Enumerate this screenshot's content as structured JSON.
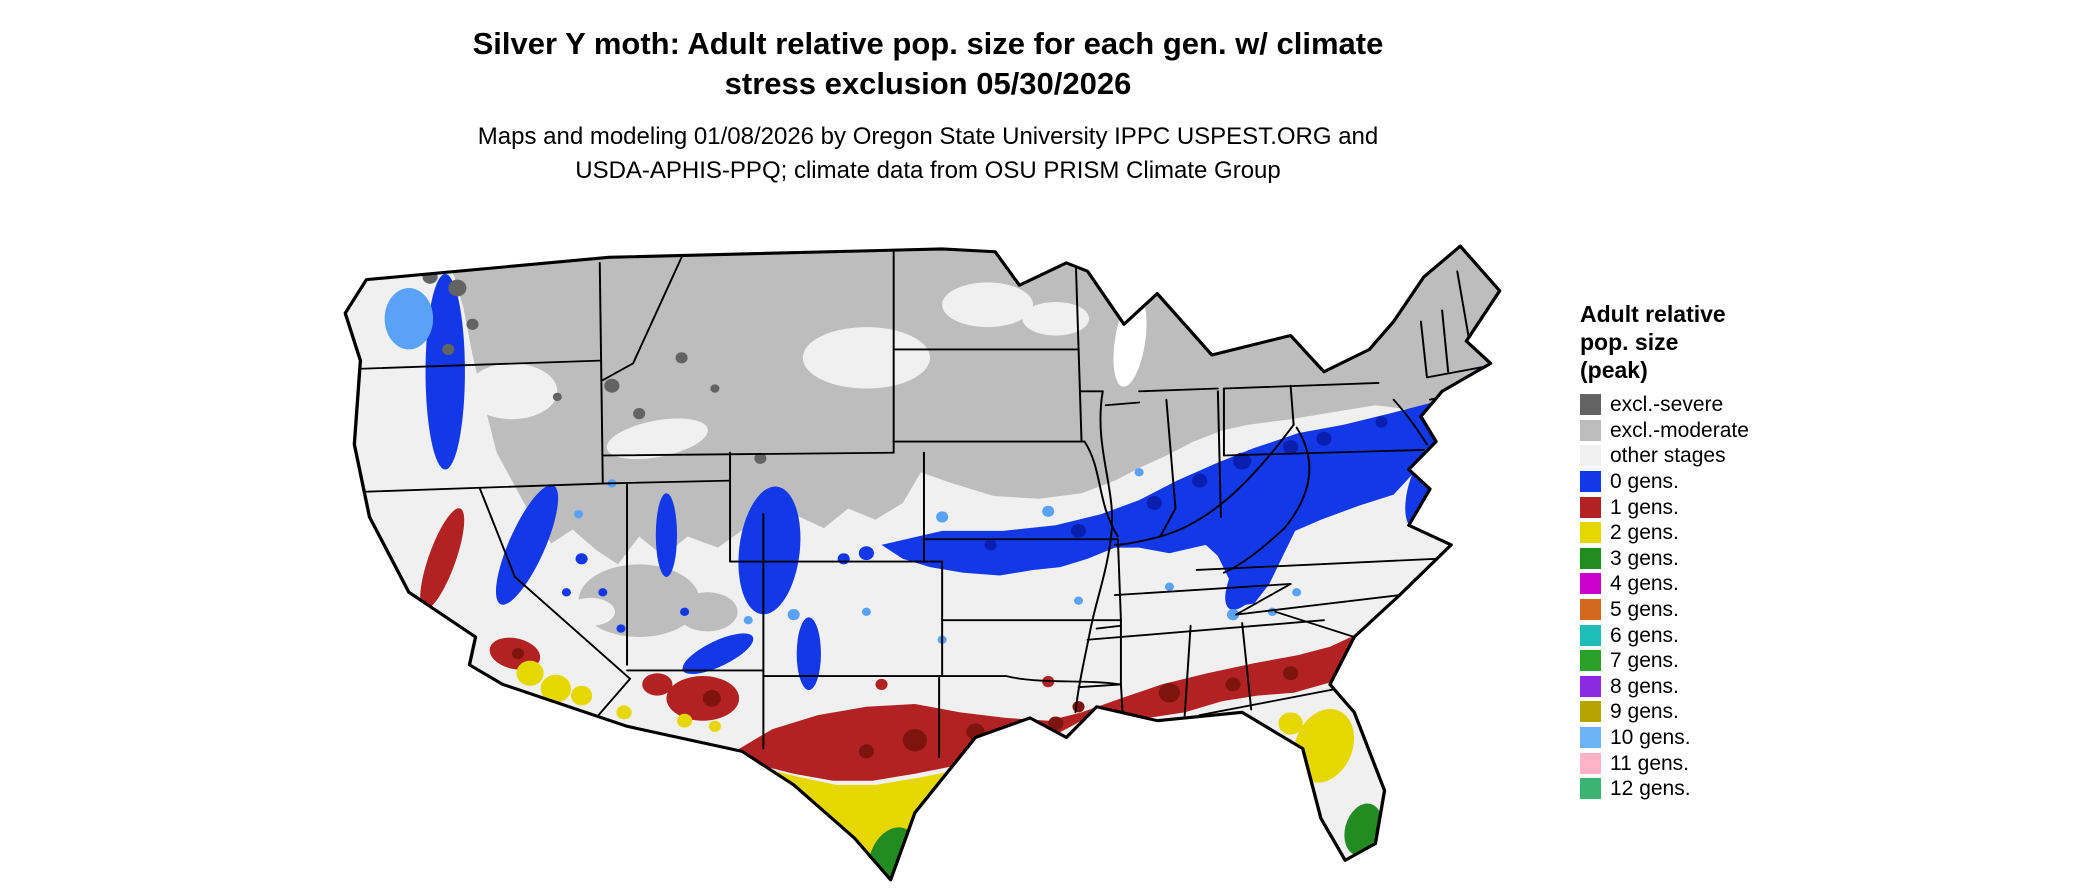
{
  "title": {
    "line1": "Silver Y moth: Adult relative pop. size for each gen. w/ climate",
    "line2": "stress exclusion 05/30/2026"
  },
  "subtitle": {
    "line1": "Maps and modeling 01/08/2026 by Oregon State University IPPC USPEST.ORG and",
    "line2": "USDA-APHIS-PPQ; climate data from OSU PRISM Climate Group"
  },
  "legend": {
    "title_lines": [
      "Adult relative",
      "pop. size",
      "(peak)"
    ],
    "items": [
      {
        "label": "excl.-severe",
        "color": "#636363"
      },
      {
        "label": "excl.-moderate",
        "color": "#bdbdbd"
      },
      {
        "label": "other stages",
        "color": "#f0f0f0"
      },
      {
        "label": "0 gens.",
        "color": "#1238e8"
      },
      {
        "label": "1 gens.",
        "color": "#b22222"
      },
      {
        "label": "2 gens.",
        "color": "#e7d700"
      },
      {
        "label": "3 gens.",
        "color": "#228b22"
      },
      {
        "label": "4 gens.",
        "color": "#cc00cc"
      },
      {
        "label": "5 gens.",
        "color": "#d2691e"
      },
      {
        "label": "6 gens.",
        "color": "#1fbdb8"
      },
      {
        "label": "7 gens.",
        "color": "#2aa02a"
      },
      {
        "label": "8 gens.",
        "color": "#8a2be2"
      },
      {
        "label": "9 gens.",
        "color": "#b5a300"
      },
      {
        "label": "10 gens.",
        "color": "#6cb2f5"
      },
      {
        "label": "11 gens.",
        "color": "#ffb3c6"
      },
      {
        "label": "12 gens.",
        "color": "#3cb371"
      }
    ]
  },
  "map": {
    "description": "Continental US map of Silver Y moth adult relative population size per generation with climate stress exclusion",
    "regions": {
      "north": "excl.-moderate (gray) with excl.-severe speckles in northwest mountains",
      "mid_band": "0 gens. (blue) from Kansas through Ohio Valley to New Jersey and down the Appalachians",
      "south_band": "1 gens. (red) from central Texas through the Gulf states to South Carolina, plus Arizona and southern/central California",
      "gulf": "2 gens. (yellow) south Texas, Gulf coast and north-central Florida, spots in southern California/Arizona",
      "tips": "3 gens. (green) at the southern tip of Texas and south Florida",
      "remainder": "other stages (light gray)"
    }
  }
}
